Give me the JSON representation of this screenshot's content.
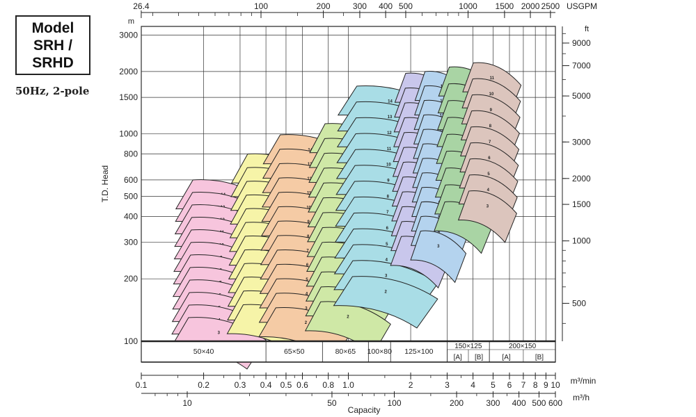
{
  "model_box": {
    "line1": "Model",
    "line2": "SRH /",
    "line3": "SRHD"
  },
  "subtitle": "50Hz, 2-pole",
  "chart_data": {
    "type": "area",
    "title": "",
    "ylabel": "T.D. Head",
    "xlabel": "Capacity",
    "log_x": true,
    "log_y": true,
    "x_axis_m3min": {
      "unit": "m³/min",
      "range": [
        0.1,
        10
      ],
      "ticks": [
        {
          "v": 0.1,
          "l": "0.1"
        },
        {
          "v": 0.2,
          "l": "0.2"
        },
        {
          "v": 0.3,
          "l": "0.3"
        },
        {
          "v": 0.4,
          "l": "0.4"
        },
        {
          "v": 0.5,
          "l": "0.5"
        },
        {
          "v": 0.6,
          "l": "0.6"
        },
        {
          "v": 0.8,
          "l": "0.8"
        },
        {
          "v": 1.0,
          "l": "1.0"
        },
        {
          "v": 2,
          "l": "2"
        },
        {
          "v": 3,
          "l": "3"
        },
        {
          "v": 4,
          "l": "4"
        },
        {
          "v": 5,
          "l": "5"
        },
        {
          "v": 6,
          "l": "6"
        },
        {
          "v": 7,
          "l": "7"
        },
        {
          "v": 8,
          "l": "8"
        },
        {
          "v": 9,
          "l": "9"
        },
        {
          "v": 10,
          "l": "10"
        }
      ]
    },
    "x_axis_m3h": {
      "unit": "m³/h",
      "ticks": [
        {
          "v": 10,
          "l": "10"
        },
        {
          "v": 50,
          "l": "50"
        },
        {
          "v": 100,
          "l": "100"
        },
        {
          "v": 200,
          "l": "200"
        },
        {
          "v": 300,
          "l": "300"
        },
        {
          "v": 400,
          "l": "400"
        },
        {
          "v": 500,
          "l": "500"
        },
        {
          "v": 600,
          "l": "600"
        }
      ]
    },
    "x_axis_usgpm": {
      "unit": "USGPM",
      "ticks": [
        {
          "v": 26.4,
          "l": "26.4"
        },
        {
          "v": 100,
          "l": "100"
        },
        {
          "v": 200,
          "l": "200"
        },
        {
          "v": 300,
          "l": "300"
        },
        {
          "v": 400,
          "l": "400"
        },
        {
          "v": 500,
          "l": "500"
        },
        {
          "v": 1000,
          "l": "1000"
        },
        {
          "v": 1500,
          "l": "1500"
        },
        {
          "v": 2000,
          "l": "2000"
        },
        {
          "v": 2500,
          "l": "2500"
        }
      ]
    },
    "y_axis_m": {
      "unit": "m",
      "range": [
        100,
        3300
      ],
      "ticks": [
        {
          "v": 100,
          "l": "100"
        },
        {
          "v": 200,
          "l": "200"
        },
        {
          "v": 300,
          "l": "300"
        },
        {
          "v": 400,
          "l": "400"
        },
        {
          "v": 500,
          "l": "500"
        },
        {
          "v": 600,
          "l": "600"
        },
        {
          "v": 800,
          "l": "800"
        },
        {
          "v": 1000,
          "l": "1000"
        },
        {
          "v": 1500,
          "l": "1500"
        },
        {
          "v": 2000,
          "l": "2000"
        },
        {
          "v": 3000,
          "l": "3000"
        }
      ]
    },
    "y_axis_ft": {
      "unit": "ft",
      "ticks": [
        {
          "v": 500,
          "l": "500"
        },
        {
          "v": 1000,
          "l": "1000"
        },
        {
          "v": 1500,
          "l": "1500"
        },
        {
          "v": 2000,
          "l": "2000"
        },
        {
          "v": 3000,
          "l": "3000"
        },
        {
          "v": 5000,
          "l": "5000"
        },
        {
          "v": 7000,
          "l": "7000"
        },
        {
          "v": 9000,
          "l": "9000"
        }
      ]
    },
    "series": [
      {
        "name": "50×40",
        "color": "#f7c5dd",
        "q": [
          0.14,
          0.4
        ],
        "stages": [
          3,
          14
        ],
        "head_first": 130,
        "head_last": 600
      },
      {
        "name": "65×50",
        "color": "#f6f4a8",
        "q": [
          0.26,
          0.7
        ],
        "stages": [
          3,
          14
        ],
        "head_first": 150,
        "head_last": 800
      },
      {
        "name": "80×65",
        "color": "#f5cba5",
        "q": [
          0.37,
          1.05
        ],
        "stages": [
          2,
          14
        ],
        "head_first": 145,
        "head_last": 990
      },
      {
        "name": "100×80",
        "color": "#cfe8a6",
        "q": [
          0.62,
          1.6
        ],
        "stages": [
          2,
          14
        ],
        "head_first": 155,
        "head_last": 1120
      },
      {
        "name": "125×100",
        "color": "#a9dde6",
        "q": [
          0.85,
          2.7
        ],
        "stages": [
          2,
          14
        ],
        "head_first": 205,
        "head_last": 1700
      },
      {
        "name": "150×125 [A]",
        "color": "#c9c7ec",
        "q": [
          1.6,
          3.1
        ],
        "stages": [
          3,
          14
        ],
        "head_first": 320,
        "head_last": 1960
      },
      {
        "name": "150×125 [B]",
        "color": "#b4d3ee",
        "q": [
          2.0,
          3.7
        ],
        "stages": [
          3,
          14
        ],
        "head_first": 340,
        "head_last": 2000
      },
      {
        "name": "200×150 [A]",
        "color": "#a9d4a4",
        "q": [
          2.6,
          5.0
        ],
        "stages": [
          3,
          11
        ],
        "head_first": 470,
        "head_last": 2100
      },
      {
        "name": "200×150 [B]",
        "color": "#dcc5bd",
        "q": [
          3.4,
          6.5
        ],
        "stages": [
          3,
          11
        ],
        "head_first": 530,
        "head_last": 2200
      }
    ],
    "band_cells": [
      {
        "label": "50×40",
        "from": 0.1,
        "to": 0.4
      },
      {
        "label": "65×50",
        "from": 0.4,
        "to": 0.75
      },
      {
        "label": "80×65",
        "from": 0.75,
        "to": 1.25
      },
      {
        "label": "100×80",
        "from": 1.25,
        "to": 1.6
      },
      {
        "label": "125×100",
        "from": 1.6,
        "to": 3.0
      },
      {
        "label": "150×125",
        "from": 3.0,
        "to": 4.8,
        "sub": [
          {
            "label": "[A]",
            "from": 3.0,
            "to": 3.8
          },
          {
            "label": "[B]",
            "from": 3.8,
            "to": 4.8
          }
        ]
      },
      {
        "label": "200×150",
        "from": 4.8,
        "to": 10,
        "sub": [
          {
            "label": "[A]",
            "from": 4.8,
            "to": 7.0
          },
          {
            "label": "[B]",
            "from": 7.0,
            "to": 10
          }
        ]
      }
    ],
    "grid": true,
    "legend": "none"
  }
}
